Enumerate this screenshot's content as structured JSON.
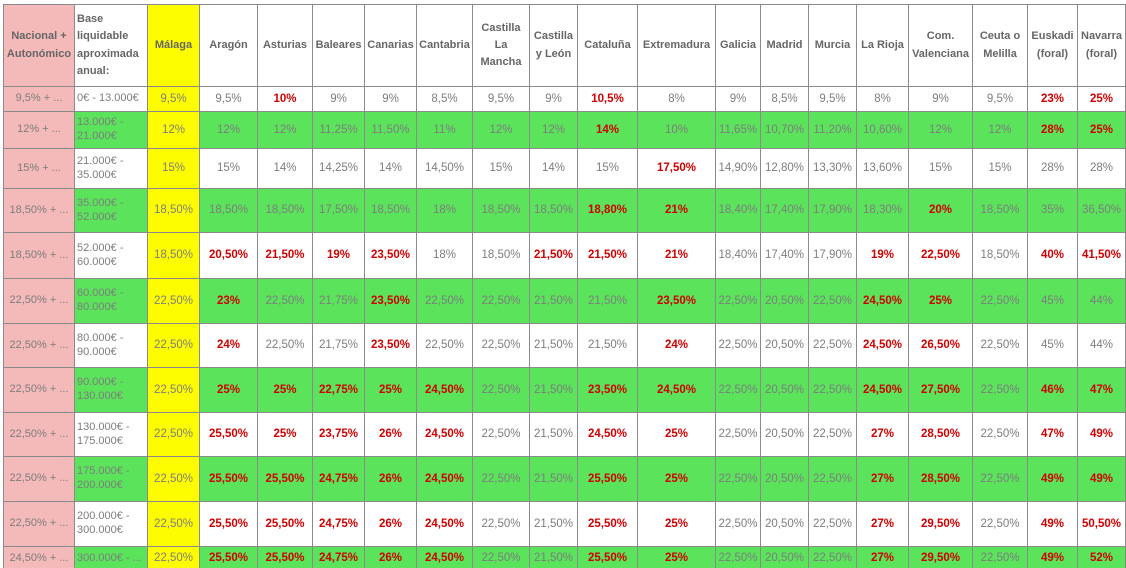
{
  "colors": {
    "pink": "#f4b9b9",
    "yellow": "#fdfd00",
    "green": "#5be35c",
    "red": "#d10000",
    "value_text_gray": "#7d7d7d",
    "header_text_gray": "#666666",
    "border_gray": "#8a8a8a"
  },
  "table": {
    "corner_header": "Nacional + Autonómico",
    "base_header": "Base liquidable aproximada anual:",
    "region_headers": [
      "Málaga",
      "Aragón",
      "Asturias",
      "Baleares",
      "Canarias",
      "Cantabria",
      "Castilla La Mancha",
      "Castilla y León",
      "Cataluña",
      "Extremadura",
      "Galicia",
      "Madrid",
      "Murcia",
      "La Rioja",
      "Com. Valenciana",
      "Ceuta o Melilla",
      "Euskadi (foral)",
      "Navarra (foral)"
    ],
    "rows": [
      {
        "national": "9,5% + ...",
        "base": "0€ - 13.000€",
        "values": [
          "9,5%",
          "9,5%",
          "10%",
          "9%",
          "9%",
          "8,5%",
          "9,5%",
          "9%",
          "10,5%",
          "8%",
          "9%",
          "8,5%",
          "9,5%",
          "8%",
          "9%",
          "9,5%",
          "23%",
          "25%"
        ],
        "red_flags": [
          0,
          0,
          1,
          0,
          0,
          0,
          0,
          0,
          1,
          0,
          0,
          0,
          0,
          0,
          0,
          0,
          1,
          1
        ]
      },
      {
        "national": "12% + ...",
        "base": "13.000€ - 21.000€",
        "values": [
          "12%",
          "12%",
          "12%",
          "11,25%",
          "11,50%",
          "11%",
          "12%",
          "12%",
          "14%",
          "10%",
          "11,65%",
          "10,70%",
          "11,20%",
          "10,60%",
          "12%",
          "12%",
          "28%",
          "25%"
        ],
        "red_flags": [
          0,
          0,
          0,
          0,
          0,
          0,
          0,
          0,
          1,
          0,
          0,
          0,
          0,
          0,
          0,
          0,
          1,
          1
        ]
      },
      {
        "national": "15% + ...",
        "base": "21.000€ - 35.000€",
        "values": [
          "15%",
          "15%",
          "14%",
          "14,25%",
          "14%",
          "14,50%",
          "15%",
          "14%",
          "15%",
          "17,50%",
          "14,90%",
          "12,80%",
          "13,30%",
          "13,60%",
          "15%",
          "15%",
          "28%",
          "28%"
        ],
        "red_flags": [
          0,
          0,
          0,
          0,
          0,
          0,
          0,
          0,
          0,
          1,
          0,
          0,
          0,
          0,
          0,
          0,
          0,
          0
        ]
      },
      {
        "national": "18,50% + ...",
        "base": "35.000€ - 52.000€",
        "values": [
          "18,50%",
          "18,50%",
          "18,50%",
          "17,50%",
          "18,50%",
          "18%",
          "18,50%",
          "18,50%",
          "18,80%",
          "21%",
          "18,40%",
          "17,40%",
          "17,90%",
          "18,30%",
          "20%",
          "18,50%",
          "35%",
          "36,50%"
        ],
        "red_flags": [
          0,
          0,
          0,
          0,
          0,
          0,
          0,
          0,
          1,
          1,
          0,
          0,
          0,
          0,
          1,
          0,
          0,
          0
        ]
      },
      {
        "national": "18,50% + ...",
        "base": "52.000€ - 60.000€",
        "values": [
          "18,50%",
          "20,50%",
          "21,50%",
          "19%",
          "23,50%",
          "18%",
          "18,50%",
          "21,50%",
          "21,50%",
          "21%",
          "18,40%",
          "17,40%",
          "17,90%",
          "19%",
          "22,50%",
          "18,50%",
          "40%",
          "41,50%"
        ],
        "red_flags": [
          0,
          1,
          1,
          1,
          1,
          0,
          0,
          1,
          1,
          1,
          0,
          0,
          0,
          1,
          1,
          0,
          1,
          1
        ]
      },
      {
        "national": "22,50% + ...",
        "base": "60.000€ - 80.000€",
        "values": [
          "22,50%",
          "23%",
          "22,50%",
          "21,75%",
          "23,50%",
          "22,50%",
          "22,50%",
          "21,50%",
          "21,50%",
          "23,50%",
          "22,50%",
          "20,50%",
          "22,50%",
          "24,50%",
          "25%",
          "22,50%",
          "45%",
          "44%"
        ],
        "red_flags": [
          0,
          1,
          0,
          0,
          1,
          0,
          0,
          0,
          0,
          1,
          0,
          0,
          0,
          1,
          1,
          0,
          0,
          0
        ]
      },
      {
        "national": "22,50% + ...",
        "base": "80.000€ - 90.000€",
        "values": [
          "22,50%",
          "24%",
          "22,50%",
          "21,75%",
          "23,50%",
          "22,50%",
          "22,50%",
          "21,50%",
          "21,50%",
          "24%",
          "22,50%",
          "20,50%",
          "22,50%",
          "24,50%",
          "26,50%",
          "22,50%",
          "45%",
          "44%"
        ],
        "red_flags": [
          0,
          1,
          0,
          0,
          1,
          0,
          0,
          0,
          0,
          1,
          0,
          0,
          0,
          1,
          1,
          0,
          0,
          0
        ]
      },
      {
        "national": "22,50% + ...",
        "base": "90.000€ - 130.000€",
        "values": [
          "22,50%",
          "25%",
          "25%",
          "22,75%",
          "25%",
          "24,50%",
          "22,50%",
          "21,50%",
          "23,50%",
          "24,50%",
          "22,50%",
          "20,50%",
          "22,50%",
          "24,50%",
          "27,50%",
          "22,50%",
          "46%",
          "47%"
        ],
        "red_flags": [
          0,
          1,
          1,
          1,
          1,
          1,
          0,
          0,
          1,
          1,
          0,
          0,
          0,
          1,
          1,
          0,
          1,
          1
        ]
      },
      {
        "national": "22,50% + ...",
        "base": "130.000€ - 175.000€",
        "values": [
          "22,50%",
          "25,50%",
          "25%",
          "23,75%",
          "26%",
          "24,50%",
          "22,50%",
          "21,50%",
          "24,50%",
          "25%",
          "22,50%",
          "20,50%",
          "22,50%",
          "27%",
          "28,50%",
          "22,50%",
          "47%",
          "49%"
        ],
        "red_flags": [
          0,
          1,
          1,
          1,
          1,
          1,
          0,
          0,
          1,
          1,
          0,
          0,
          0,
          1,
          1,
          0,
          1,
          1
        ]
      },
      {
        "national": "22,50% + ...",
        "base": "175.000€ - 200.000€",
        "values": [
          "22,50%",
          "25,50%",
          "25,50%",
          "24,75%",
          "26%",
          "24,50%",
          "22,50%",
          "21,50%",
          "25,50%",
          "25%",
          "22,50%",
          "20,50%",
          "22,50%",
          "27%",
          "28,50%",
          "22,50%",
          "49%",
          "49%"
        ],
        "red_flags": [
          0,
          1,
          1,
          1,
          1,
          1,
          0,
          0,
          1,
          1,
          0,
          0,
          0,
          1,
          1,
          0,
          1,
          1
        ]
      },
      {
        "national": "22,50% + ...",
        "base": "200.000€ - 300.000€",
        "values": [
          "22,50%",
          "25,50%",
          "25,50%",
          "24,75%",
          "26%",
          "24,50%",
          "22,50%",
          "21,50%",
          "25,50%",
          "25%",
          "22,50%",
          "20,50%",
          "22,50%",
          "27%",
          "29,50%",
          "22,50%",
          "49%",
          "50,50%"
        ],
        "red_flags": [
          0,
          1,
          1,
          1,
          1,
          1,
          0,
          0,
          1,
          1,
          0,
          0,
          0,
          1,
          1,
          0,
          1,
          1
        ]
      },
      {
        "national": "24,50% + ...",
        "base": "300.000€ - ...",
        "values": [
          "22,50%",
          "25,50%",
          "25,50%",
          "24,75%",
          "26%",
          "24,50%",
          "22,50%",
          "21,50%",
          "25,50%",
          "25%",
          "22,50%",
          "20,50%",
          "22,50%",
          "27%",
          "29,50%",
          "22,50%",
          "49%",
          "52%"
        ],
        "red_flags": [
          0,
          1,
          1,
          1,
          1,
          1,
          0,
          0,
          1,
          1,
          0,
          0,
          0,
          1,
          1,
          0,
          1,
          1
        ]
      }
    ]
  }
}
